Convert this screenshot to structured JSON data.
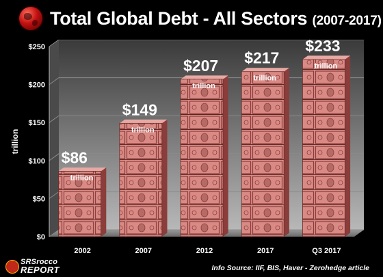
{
  "title": {
    "main": "Total Global Debt - All Sectors",
    "sub": "(2007-2017)"
  },
  "chart_data": {
    "type": "bar",
    "title": "Total Global Debt - All Sectors (2007-2017)",
    "ylabel": "trillion",
    "xlabel": "",
    "ylim": [
      0,
      250
    ],
    "yticks": [
      0,
      50,
      100,
      150,
      200,
      250
    ],
    "ytick_labels": [
      "$0",
      "$50",
      "$100",
      "$150",
      "$200",
      "$250"
    ],
    "grid": true,
    "categories": [
      "2002",
      "2007",
      "2012",
      "2017",
      "Q3 2017"
    ],
    "values": [
      86,
      149,
      207,
      217,
      233
    ],
    "value_labels": [
      "$86",
      "$149",
      "$207",
      "$217",
      "$233"
    ],
    "unit_label": "trillion",
    "colors": {
      "bar": "#d98a85",
      "bar_dark": "#8a3d3a",
      "grid": "#8a8a8a",
      "wall_top": "#3a3a3a",
      "wall_bottom": "#b8b8b8"
    }
  },
  "logo": {
    "brand": "SRSrocco",
    "report": "REPORT",
    "badge": "SRSrocco"
  },
  "source": "Info Source: IIF, BIS, Haver - Zerohedge article"
}
